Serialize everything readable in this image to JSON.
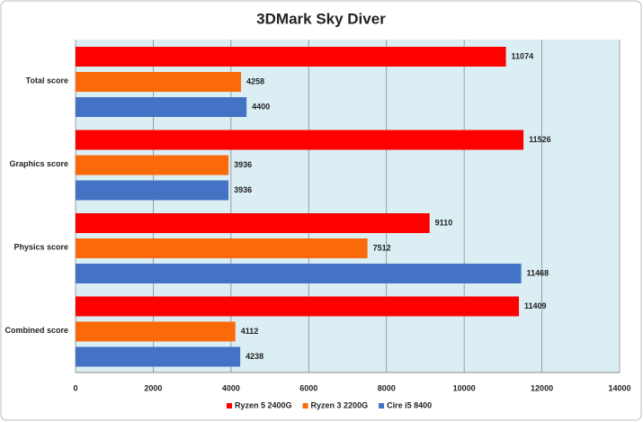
{
  "chart_data": {
    "type": "bar",
    "orientation": "horizontal",
    "title": "3DMark Sky Diver",
    "categories": [
      "Total score",
      "Graphics score",
      "Physics score",
      "Combined score"
    ],
    "series": [
      {
        "name": "Ryzen 5 2400G",
        "color": "#ff0000",
        "values": [
          11074,
          11526,
          9110,
          11409
        ]
      },
      {
        "name": "Ryzen 3 2200G",
        "color": "#fa6a0a",
        "values": [
          4258,
          3936,
          7512,
          4112
        ]
      },
      {
        "name": "Cire i5 8400",
        "color": "#4472c4",
        "values": [
          4400,
          3936,
          11468,
          4238
        ]
      }
    ],
    "xlim": [
      0,
      14000
    ],
    "xticks": [
      0,
      2000,
      4000,
      6000,
      8000,
      10000,
      12000,
      14000
    ],
    "grid": true,
    "legend": "bottom",
    "background": "#daeef3"
  }
}
